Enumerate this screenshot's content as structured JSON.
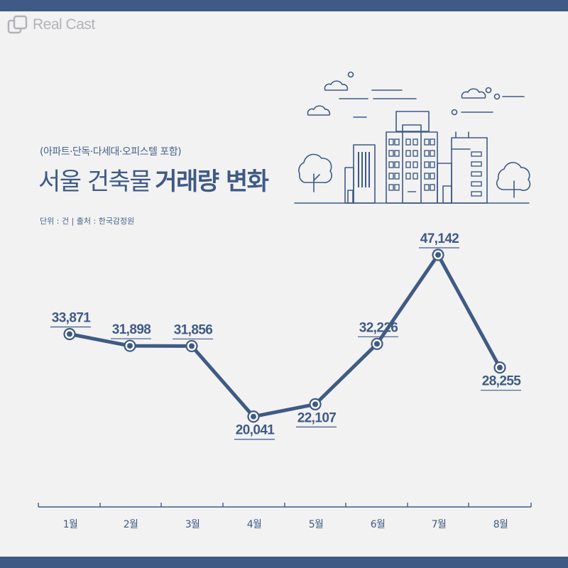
{
  "brand": {
    "name": "Real Cast"
  },
  "header": {
    "subtitle": "(아파트·단독·다세대·오피스텔 포함)",
    "title_regular": "서울 건축물",
    "title_bold": "거래량 변화",
    "unit_note": "단위 : 건 | 출처 : 한국감정원"
  },
  "colors": {
    "primary": "#3f5a84",
    "background": "#f2f2f3",
    "logo": "#b2b3b8"
  },
  "chart_data": {
    "type": "line",
    "title": "서울 건축물 거래량 변화",
    "subtitle": "(아파트·단독·다세대·오피스텔 포함)",
    "categories": [
      "1월",
      "2월",
      "3월",
      "4월",
      "5월",
      "6월",
      "7월",
      "8월"
    ],
    "values": [
      33871,
      31898,
      31856,
      20041,
      22107,
      32226,
      47142,
      28255
    ],
    "value_labels": [
      "33,871",
      "31,898",
      "31,856",
      "20,041",
      "22,107",
      "32,226",
      "47,142",
      "28,255"
    ],
    "label_positions": [
      "above",
      "above",
      "above",
      "below",
      "below",
      "above",
      "above",
      "below"
    ],
    "grid": false,
    "legend": "none"
  }
}
